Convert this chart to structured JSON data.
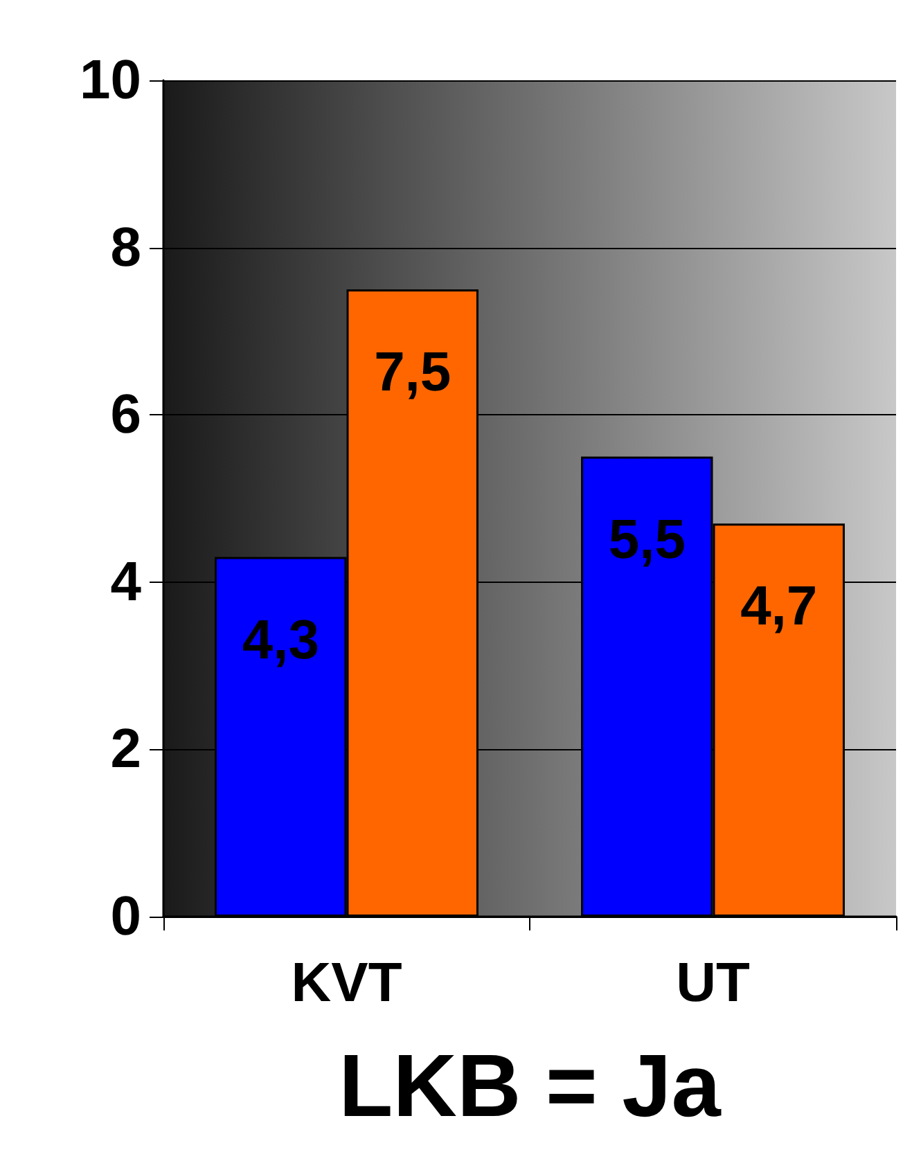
{
  "chart_data": {
    "type": "bar",
    "xlabel": "LKB = Ja",
    "categories": [
      "KVT",
      "UT"
    ],
    "series": [
      {
        "color": "#0000ff",
        "values": [
          4.3,
          5.5
        ],
        "value_labels": [
          "4,3",
          "5,5"
        ]
      },
      {
        "color": "#ff6600",
        "values": [
          7.5,
          4.7
        ],
        "value_labels": [
          "7,5",
          "4,7"
        ]
      }
    ],
    "ylim": [
      0,
      10
    ],
    "yticks": [
      0,
      2,
      4,
      6,
      8,
      10
    ],
    "grid": "y"
  }
}
